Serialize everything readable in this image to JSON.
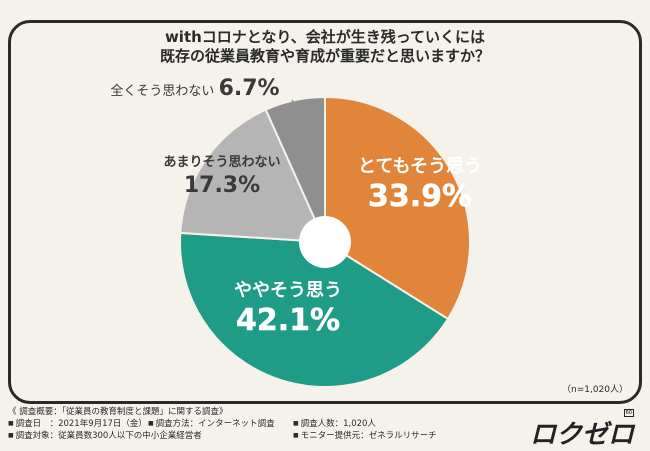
{
  "title_line1": "withコロナとなり、会社が生き残っていくには",
  "title_line2": "既存の従業員教育や育成が重要だと思いますか？",
  "chart_data": {
    "type": "pie",
    "title": "withコロナとなり、会社が生き残っていくには既存の従業員教育や育成が重要だと思いますか？",
    "categories": [
      "とてもそう思う",
      "ややそう思う",
      "あまりそう思わない",
      "全くそう思わない"
    ],
    "values": [
      33.9,
      42.1,
      17.3,
      6.7
    ],
    "value_labels": [
      "33.9%",
      "42.1%",
      "17.3%",
      "6.7%"
    ],
    "colors": [
      "#e0853a",
      "#1f9c88",
      "#b5b5b5",
      "#8f8f8f"
    ],
    "label_colors": [
      "#ffffff",
      "#ffffff",
      "#3a3a3a",
      "#3a3a3a"
    ],
    "start_angle_deg": 0,
    "hole": true
  },
  "n_note": "（n=1,020人）",
  "survey": {
    "heading": "《 調査概要：「従業員の教育制度と課題」に関する調査》",
    "items": [
      [
        "調査日　：2021年9月17日（金）",
        "調査方法：インターネット調査",
        "調査人数：1,020人"
      ],
      [
        "調査対象：従業員数300人以下の中小企業経営者",
        "",
        "モニター提供元：ゼネラルリサーチ"
      ]
    ]
  },
  "logo_text": "ロクゼロ",
  "logo_mark": "60"
}
